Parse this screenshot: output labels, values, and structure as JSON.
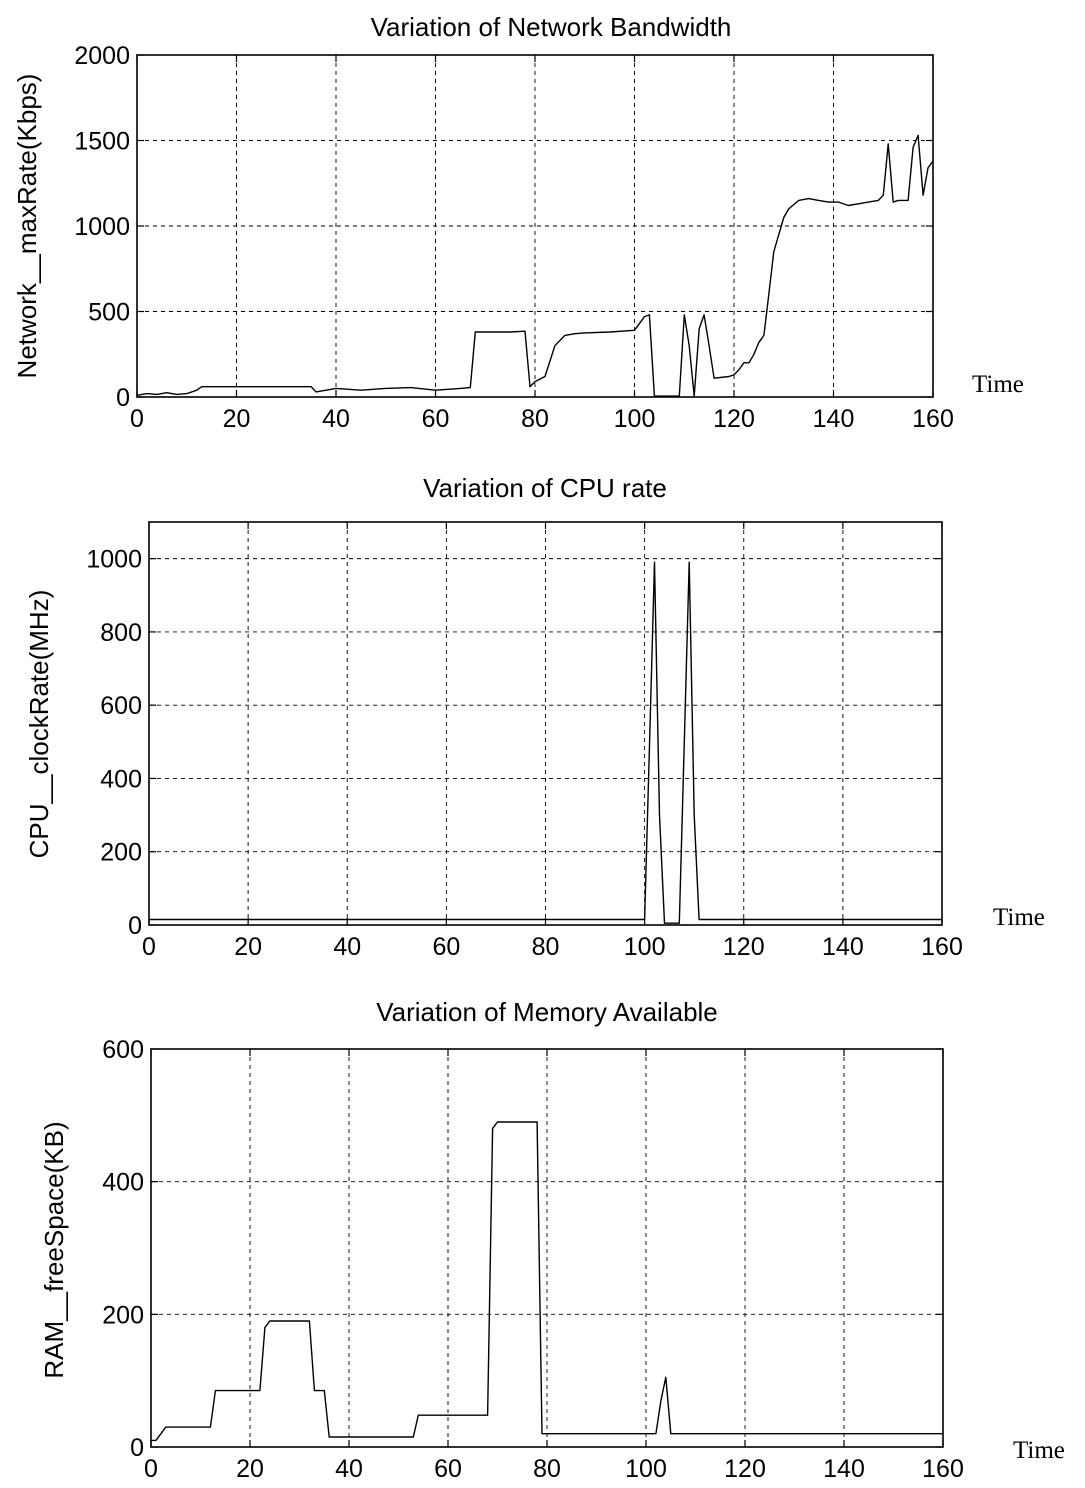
{
  "chart_data": [
    {
      "type": "line",
      "title": "Variation of Network Bandwidth",
      "xlabel": "Time",
      "ylabel": "Network__maxRate(Kbps)",
      "xlim": [
        0,
        160
      ],
      "ylim": [
        0,
        2000
      ],
      "xticks": [
        0,
        20,
        40,
        60,
        80,
        100,
        120,
        140,
        160
      ],
      "yticks": [
        0,
        500,
        1000,
        1500,
        2000
      ],
      "grid": true,
      "series": [
        {
          "x": [
            0,
            2,
            4,
            6,
            8,
            10,
            12,
            13,
            20,
            30,
            35,
            36,
            38,
            40,
            45,
            50,
            55,
            60,
            65,
            67,
            68,
            70,
            75,
            78,
            79,
            80,
            82,
            84,
            86,
            88,
            90,
            95,
            100,
            102,
            103,
            104,
            105,
            109,
            110,
            111,
            112,
            113,
            114,
            115,
            116,
            119,
            120,
            121,
            122,
            123,
            124,
            125,
            126,
            127,
            128,
            129,
            130,
            131,
            133,
            135,
            137,
            139,
            141,
            143,
            145,
            147,
            149,
            150,
            151,
            152,
            153,
            155,
            156,
            157,
            158,
            159,
            160
          ],
          "y": [
            10,
            20,
            15,
            25,
            15,
            20,
            40,
            60,
            60,
            60,
            60,
            30,
            40,
            50,
            40,
            50,
            55,
            40,
            50,
            55,
            380,
            380,
            380,
            385,
            60,
            90,
            120,
            300,
            360,
            370,
            375,
            380,
            390,
            470,
            480,
            5,
            5,
            5,
            480,
            300,
            5,
            400,
            480,
            300,
            110,
            120,
            130,
            160,
            200,
            200,
            250,
            320,
            360,
            600,
            850,
            950,
            1050,
            1100,
            1150,
            1160,
            1150,
            1140,
            1140,
            1120,
            1130,
            1140,
            1150,
            1180,
            1480,
            1140,
            1150,
            1150,
            1460,
            1530,
            1180,
            1340,
            1380
          ]
        }
      ]
    },
    {
      "type": "line",
      "title": "Variation of CPU rate",
      "xlabel": "Time",
      "ylabel": "CPU__clockRate(MHz)",
      "xlim": [
        0,
        160
      ],
      "ylim": [
        0,
        1100
      ],
      "xticks": [
        0,
        20,
        40,
        60,
        80,
        100,
        120,
        140,
        160
      ],
      "yticks": [
        0,
        200,
        400,
        600,
        800,
        1000
      ],
      "grid": true,
      "series": [
        {
          "x": [
            0,
            50,
            99,
            100,
            101,
            102,
            103,
            104,
            105,
            107,
            108,
            109,
            110,
            111,
            112,
            113,
            115,
            160
          ],
          "y": [
            15,
            15,
            15,
            15,
            500,
            990,
            300,
            5,
            5,
            5,
            500,
            990,
            300,
            15,
            15,
            15,
            15,
            15
          ]
        }
      ]
    },
    {
      "type": "line",
      "title": "Variation of Memory Available",
      "xlabel": "Time",
      "ylabel": "RAM__freeSpace(KB)",
      "xlim": [
        0,
        160
      ],
      "ylim": [
        0,
        600
      ],
      "xticks": [
        0,
        20,
        40,
        60,
        80,
        100,
        120,
        140,
        160
      ],
      "yticks": [
        0,
        200,
        400,
        600
      ],
      "grid": true,
      "series": [
        {
          "x": [
            0,
            1,
            2,
            3,
            12,
            13,
            22,
            23,
            24,
            32,
            33,
            35,
            36,
            53,
            54,
            68,
            69,
            70,
            78,
            79,
            102,
            103,
            104,
            105,
            160
          ],
          "y": [
            10,
            10,
            20,
            30,
            30,
            85,
            85,
            180,
            190,
            190,
            85,
            85,
            15,
            15,
            48,
            48,
            480,
            490,
            490,
            20,
            20,
            70,
            105,
            20,
            20
          ]
        }
      ]
    }
  ]
}
